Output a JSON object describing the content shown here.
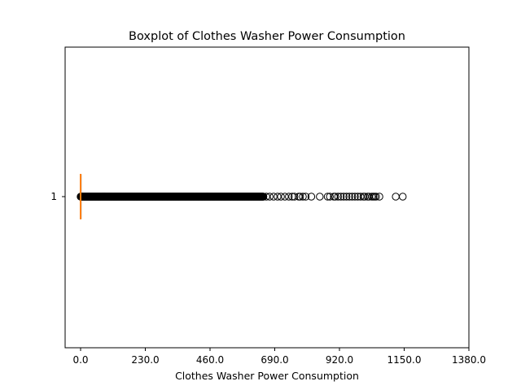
{
  "chart_data": {
    "type": "boxplot",
    "orientation": "horizontal",
    "title": "Boxplot of Clothes Washer Power Consumption",
    "xlabel": "Clothes Washer Power Consumption",
    "ylabel": "",
    "xlim": [
      -55,
      1380
    ],
    "x_ticks": [
      0.0,
      230.0,
      460.0,
      690.0,
      920.0,
      1150.0,
      1380.0
    ],
    "x_tick_labels": [
      "0.0",
      "230.0",
      "460.0",
      "690.0",
      "920.0",
      "1150.0",
      "1380.0"
    ],
    "y_tick_labels": [
      "1"
    ],
    "grid": false,
    "box": {
      "label": "1",
      "q1": 0.0,
      "median": 0.0,
      "q3": 0.0,
      "whisker_low": 0.0,
      "whisker_high": 0.0
    },
    "outliers": {
      "dense_range": [
        0.0,
        650.0
      ],
      "sparse": [
        660,
        672,
        686,
        700,
        712,
        726,
        740,
        752,
        760,
        775,
        780,
        790,
        800,
        820,
        850,
        878,
        886,
        900,
        905,
        915,
        925,
        935,
        945,
        955,
        965,
        975,
        985,
        995,
        1005,
        1010,
        1020,
        1025,
        1035,
        1040,
        1045,
        1050,
        1062
      ],
      "extreme": [
        1120,
        1145
      ]
    },
    "colors": {
      "median": "#ff7f0e",
      "box": "#000000",
      "outlier_edge": "#000000",
      "axes": "#000000",
      "background": "#ffffff"
    }
  }
}
